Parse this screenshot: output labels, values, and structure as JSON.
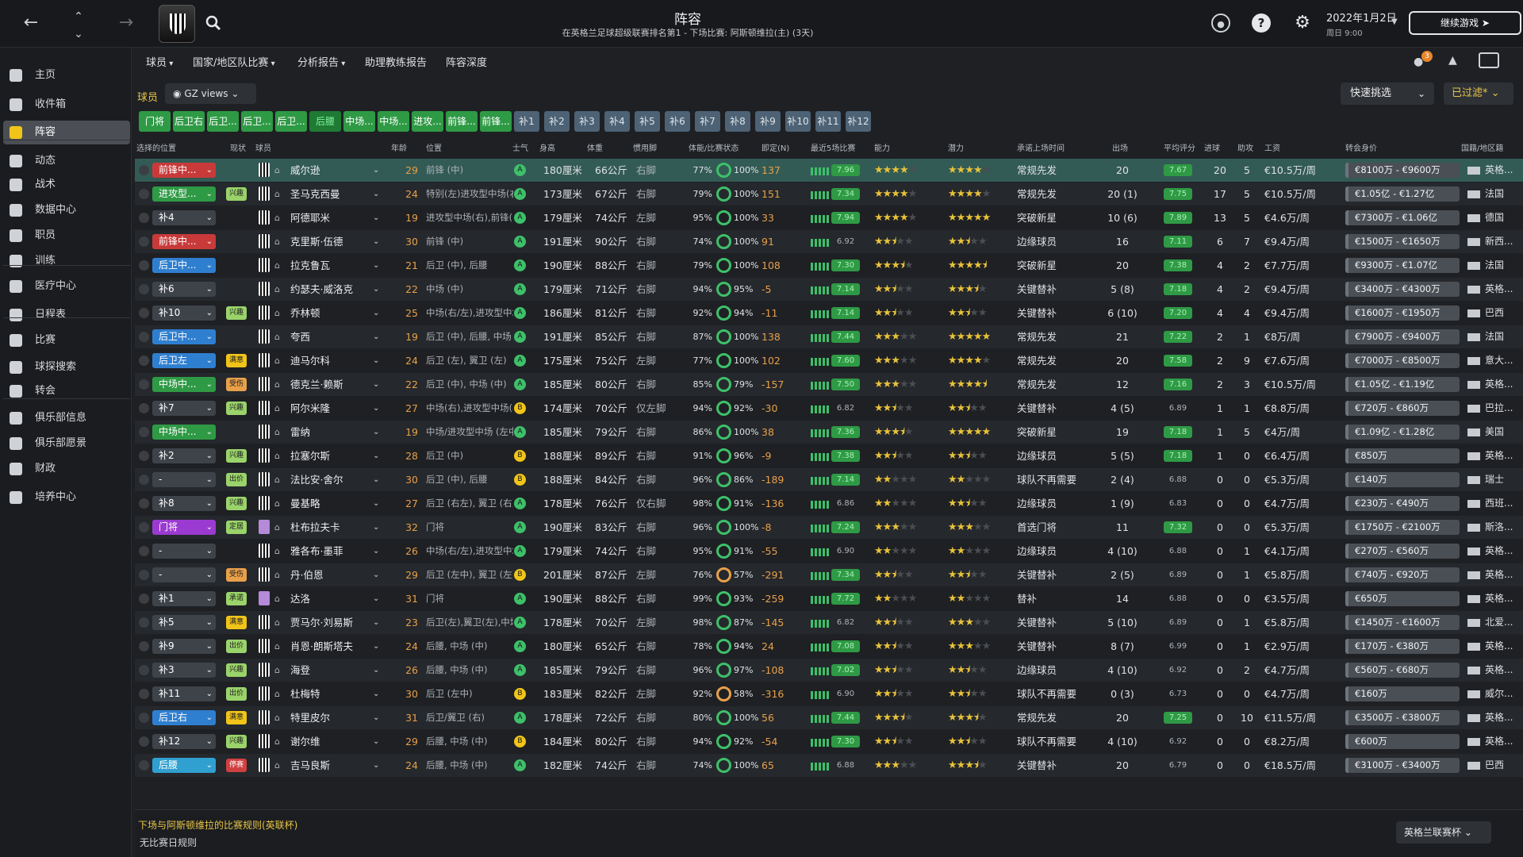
{
  "header": {
    "title": "阵容",
    "subtitle": "在英格兰足球超级联赛排名第1 - 下场比赛: 阿斯顿维拉(主) (3天)",
    "date": "2022年1月2日",
    "time": "周日 9:00",
    "continue_label": "继续游戏",
    "notif_count": "3"
  },
  "sidebar": {
    "items": [
      {
        "label": "主页",
        "icon": "home-icon"
      },
      {
        "label": "收件箱",
        "icon": "inbox-icon"
      },
      {
        "label": "阵容",
        "icon": "squad-icon"
      },
      {
        "label": "动态",
        "icon": "dynamics-icon"
      },
      {
        "label": "战术",
        "icon": "tactics-icon"
      },
      {
        "label": "数据中心",
        "icon": "data-hub-icon"
      },
      {
        "label": "职员",
        "icon": "staff-icon"
      },
      {
        "label": "训练",
        "icon": "training-icon"
      },
      {
        "label": "医疗中心",
        "icon": "medical-icon"
      },
      {
        "label": "日程表",
        "icon": "calendar-icon"
      },
      {
        "label": "比赛",
        "icon": "trophy-icon"
      },
      {
        "label": "球探搜索",
        "icon": "scouting-icon"
      },
      {
        "label": "转会",
        "icon": "transfer-icon"
      },
      {
        "label": "俱乐部信息",
        "icon": "club-info-icon"
      },
      {
        "label": "俱乐部愿景",
        "icon": "club-vision-icon"
      },
      {
        "label": "财政",
        "icon": "finance-icon"
      },
      {
        "label": "培养中心",
        "icon": "development-icon"
      }
    ]
  },
  "subtabs": [
    "球员",
    "国家/地区队比赛",
    "分析报告",
    "助理教练报告",
    "阵容深度"
  ],
  "filters": {
    "players_label": "球员",
    "view_label": "GZ views",
    "quick_pick": "快速挑选",
    "filtered": "已过滤*"
  },
  "position_tabs": [
    "门将",
    "后卫右",
    "后卫...",
    "后卫...",
    "后卫...",
    "后腰",
    "中场...",
    "中场...",
    "进攻...",
    "前锋...",
    "前锋...",
    "补1",
    "补2",
    "补3",
    "补4",
    "补5",
    "补6",
    "补7",
    "补8",
    "补9",
    "补10",
    "补11",
    "补12"
  ],
  "columns": [
    "选择的位置",
    "现状",
    "球员",
    "年龄",
    "位置",
    "士气",
    "身高",
    "体重",
    "惯用脚",
    "体能/比赛状态",
    "即定(N)",
    "最近5场比赛",
    "能力",
    "潜力",
    "承诺上场时间",
    "出场",
    "平均评分",
    "进球",
    "助攻",
    "工资",
    "转会身价",
    "国籍/地区籍"
  ],
  "players": [
    {
      "sel": "前锋中...",
      "selc": "#c83a3a",
      "st": "",
      "stc": "",
      "name": "威尔逊",
      "age": "29",
      "pos": "前锋 (中)",
      "mor": "A",
      "morc": "#3ec06a",
      "h": "180厘米",
      "w": "66公斤",
      "ft": "右脚",
      "c": "77%",
      "s": "100%",
      "fit": "137",
      "f5": "7.96",
      "ab": 4,
      "abh": 0,
      "pt": 4,
      "pth": 0,
      "role": "常规先发",
      "apps": "20",
      "avg": "7.67",
      "g": "20",
      "a": "5",
      "wage": "€10.5万/周",
      "val": "€8100万 - €9600万",
      "nat": "英格..."
    },
    {
      "sel": "进攻型...",
      "selc": "#2f9a45",
      "st": "兴趣",
      "stc": "#9ad36a",
      "name": "圣马克西曼",
      "age": "24",
      "pos": "特别(左)进攻型中场(右/左)",
      "mor": "A",
      "morc": "#3ec06a",
      "h": "173厘米",
      "w": "67公斤",
      "ft": "右脚",
      "c": "79%",
      "s": "100%",
      "fit": "151",
      "f5": "7.34",
      "ab": 4,
      "abh": 0,
      "pt": 4,
      "pth": 0,
      "role": "常规先发",
      "apps": "20 (1)",
      "avg": "7.75",
      "g": "17",
      "a": "5",
      "wage": "€10.5万/周",
      "val": "€1.05亿 - €1.27亿",
      "nat": "法国"
    },
    {
      "sel": "补4",
      "selc": "#3e434a",
      "st": "",
      "stc": "",
      "name": "阿德耶米",
      "age": "19",
      "pos": "进攻型中场(右),前锋(中)",
      "mor": "A",
      "morc": "#3ec06a",
      "h": "179厘米",
      "w": "74公斤",
      "ft": "左脚",
      "c": "95%",
      "s": "100%",
      "fit": "33",
      "f5": "7.94",
      "ab": 4,
      "abh": 0,
      "pt": 5,
      "pth": 0,
      "role": "突破新星",
      "apps": "10 (6)",
      "avg": "7.89",
      "g": "13",
      "a": "5",
      "wage": "€4.6万/周",
      "val": "€7300万 - €1.06亿",
      "nat": "德国"
    },
    {
      "sel": "前锋中...",
      "selc": "#c83a3a",
      "st": "",
      "stc": "",
      "name": "克里斯·伍德",
      "age": "30",
      "pos": "前锋 (中)",
      "mor": "A",
      "morc": "#3ec06a",
      "h": "191厘米",
      "w": "90公斤",
      "ft": "右脚",
      "c": "74%",
      "s": "100%",
      "fit": "91",
      "f5": "6.92",
      "ab": 2,
      "abh": 1,
      "pt": 2,
      "pth": 1,
      "role": "边缘球员",
      "apps": "16",
      "avg": "7.11",
      "g": "6",
      "a": "7",
      "wage": "€9.4万/周",
      "val": "€1500万 - €1650万",
      "nat": "新西..."
    },
    {
      "sel": "后卫中...",
      "selc": "#2f7fd0",
      "st": "",
      "stc": "",
      "name": "拉克鲁瓦",
      "age": "21",
      "pos": "后卫 (中), 后腰",
      "mor": "A",
      "morc": "#3ec06a",
      "h": "190厘米",
      "w": "88公斤",
      "ft": "右脚",
      "c": "79%",
      "s": "100%",
      "fit": "108",
      "f5": "7.30",
      "ab": 3,
      "abh": 1,
      "pt": 4,
      "pth": 1,
      "role": "突破新星",
      "apps": "20",
      "avg": "7.38",
      "g": "4",
      "a": "2",
      "wage": "€7.7万/周",
      "val": "€9300万 - €1.07亿",
      "nat": "法国"
    },
    {
      "sel": "补6",
      "selc": "#3e434a",
      "st": "",
      "stc": "",
      "name": "约瑟夫·威洛克",
      "age": "22",
      "pos": "中场 (中)",
      "mor": "A",
      "morc": "#3ec06a",
      "h": "179厘米",
      "w": "71公斤",
      "ft": "右脚",
      "c": "94%",
      "s": "95%",
      "fit": "-5",
      "f5": "7.14",
      "ab": 2,
      "abh": 1,
      "pt": 3,
      "pth": 1,
      "role": "关键替补",
      "apps": "5 (8)",
      "avg": "7.18",
      "g": "4",
      "a": "2",
      "wage": "€9.4万/周",
      "val": "€3400万 - €4300万",
      "nat": "英格..."
    },
    {
      "sel": "补10",
      "selc": "#3e434a",
      "st": "兴趣",
      "stc": "#9ad36a",
      "name": "乔林顿",
      "age": "25",
      "pos": "中场(右/左),进攻型中场(右/左)",
      "mor": "A",
      "morc": "#3ec06a",
      "h": "186厘米",
      "w": "81公斤",
      "ft": "右脚",
      "c": "92%",
      "s": "94%",
      "fit": "-11",
      "f5": "7.14",
      "ab": 2,
      "abh": 1,
      "pt": 2,
      "pth": 1,
      "role": "关键替补",
      "apps": "6 (10)",
      "avg": "7.20",
      "g": "4",
      "a": "4",
      "wage": "€9.4万/周",
      "val": "€1600万 - €1950万",
      "nat": "巴西"
    },
    {
      "sel": "后卫中...",
      "selc": "#2f7fd0",
      "st": "",
      "stc": "",
      "name": "夸西",
      "age": "19",
      "pos": "后卫 (中), 后腰, 中场 (中)",
      "mor": "A",
      "morc": "#3ec06a",
      "h": "191厘米",
      "w": "85公斤",
      "ft": "右脚",
      "c": "87%",
      "s": "100%",
      "fit": "138",
      "f5": "7.44",
      "ab": 3,
      "abh": 0,
      "pt": 5,
      "pth": 0,
      "role": "常规先发",
      "apps": "21",
      "avg": "7.22",
      "g": "2",
      "a": "1",
      "wage": "€8万/周",
      "val": "€7900万 - €9400万",
      "nat": "法国"
    },
    {
      "sel": "后卫左",
      "selc": "#2f7fd0",
      "st": "满意",
      "stc": "#f0c419",
      "name": "迪马尔科",
      "age": "24",
      "pos": "后卫 (左), 翼卫 (左)",
      "mor": "A",
      "morc": "#3ec06a",
      "h": "175厘米",
      "w": "75公斤",
      "ft": "左脚",
      "c": "77%",
      "s": "100%",
      "fit": "102",
      "f5": "7.60",
      "ab": 3,
      "abh": 0,
      "pt": 4,
      "pth": 0,
      "role": "常规先发",
      "apps": "20",
      "avg": "7.58",
      "g": "2",
      "a": "9",
      "wage": "€7.6万/周",
      "val": "€7000万 - €8500万",
      "nat": "意大..."
    },
    {
      "sel": "中场中...",
      "selc": "#2f9a45",
      "st": "受伤",
      "stc": "#e8a04a",
      "name": "德克兰·赖斯",
      "age": "22",
      "pos": "后卫 (中), 中场 (中)",
      "mor": "A",
      "morc": "#3ec06a",
      "h": "185厘米",
      "w": "80公斤",
      "ft": "右脚",
      "c": "85%",
      "s": "79%",
      "fit": "-157",
      "f5": "7.50",
      "ab": 3,
      "abh": 0,
      "pt": 4,
      "pth": 1,
      "role": "常规先发",
      "apps": "12",
      "avg": "7.16",
      "g": "2",
      "a": "3",
      "wage": "€10.5万/周",
      "val": "€1.05亿 - €1.19亿",
      "nat": "英格..."
    },
    {
      "sel": "补7",
      "selc": "#3e434a",
      "st": "兴趣",
      "stc": "#9ad36a",
      "name": "阿尔米隆",
      "age": "27",
      "pos": "中场(右),进攻型中场(右)",
      "mor": "B",
      "morc": "#f0c419",
      "h": "174厘米",
      "w": "70公斤",
      "ft": "仅左脚",
      "c": "94%",
      "s": "92%",
      "fit": "-30",
      "f5": "6.82",
      "ab": 2,
      "abh": 1,
      "pt": 2,
      "pth": 1,
      "role": "关键替补",
      "apps": "4 (5)",
      "avg": "6.89",
      "g": "1",
      "a": "1",
      "wage": "€8.8万/周",
      "val": "€720万 - €860万",
      "nat": "巴拉..."
    },
    {
      "sel": "中场中...",
      "selc": "#2f9a45",
      "st": "",
      "stc": "",
      "name": "雷纳",
      "age": "19",
      "pos": "中场/进攻型中场 (左中)",
      "mor": "A",
      "morc": "#3ec06a",
      "h": "185厘米",
      "w": "79公斤",
      "ft": "右脚",
      "c": "86%",
      "s": "100%",
      "fit": "38",
      "f5": "7.36",
      "ab": 3,
      "abh": 1,
      "pt": 5,
      "pth": 0,
      "role": "突破新星",
      "apps": "19",
      "avg": "7.18",
      "g": "1",
      "a": "5",
      "wage": "€4万/周",
      "val": "€1.09亿 - €1.28亿",
      "nat": "美国"
    },
    {
      "sel": "补2",
      "selc": "#3e434a",
      "st": "兴趣",
      "stc": "#9ad36a",
      "name": "拉塞尔斯",
      "age": "28",
      "pos": "后卫 (中)",
      "mor": "B",
      "morc": "#f0c419",
      "h": "188厘米",
      "w": "89公斤",
      "ft": "右脚",
      "c": "91%",
      "s": "96%",
      "fit": "-9",
      "f5": "7.38",
      "ab": 2,
      "abh": 1,
      "pt": 2,
      "pth": 1,
      "role": "边缘球员",
      "apps": "5 (5)",
      "avg": "7.18",
      "g": "1",
      "a": "0",
      "wage": "€6.4万/周",
      "val": "€850万",
      "nat": "英格..."
    },
    {
      "sel": "-",
      "selc": "#3e434a",
      "st": "出价",
      "stc": "#9ad36a",
      "name": "法比安·舍尔",
      "age": "30",
      "pos": "后卫 (中), 后腰",
      "mor": "B",
      "morc": "#f0c419",
      "h": "188厘米",
      "w": "84公斤",
      "ft": "右脚",
      "c": "96%",
      "s": "86%",
      "fit": "-189",
      "f5": "7.14",
      "ab": 2,
      "abh": 0,
      "pt": 2,
      "pth": 0,
      "role": "球队不再需要",
      "apps": "2 (4)",
      "avg": "6.88",
      "g": "0",
      "a": "0",
      "wage": "€5.3万/周",
      "val": "€140万",
      "nat": "瑞士"
    },
    {
      "sel": "补8",
      "selc": "#3e434a",
      "st": "兴趣",
      "stc": "#9ad36a",
      "name": "曼基略",
      "age": "27",
      "pos": "后卫 (右左), 翼卫 (右)",
      "mor": "A",
      "morc": "#3ec06a",
      "h": "178厘米",
      "w": "76公斤",
      "ft": "仅右脚",
      "c": "98%",
      "s": "91%",
      "fit": "-136",
      "f5": "6.86",
      "ab": 2,
      "abh": 0,
      "pt": 2,
      "pth": 1,
      "role": "边缘球员",
      "apps": "1 (9)",
      "avg": "6.83",
      "g": "0",
      "a": "0",
      "wage": "€4.7万/周",
      "val": "€230万 - €490万",
      "nat": "西班..."
    },
    {
      "sel": "门将",
      "selc": "#9a3ad0",
      "st": "定居",
      "stc": "#9ad36a",
      "name": "杜布拉夫卡",
      "age": "32",
      "pos": "门将",
      "mor": "A",
      "morc": "#3ec06a",
      "h": "190厘米",
      "w": "83公斤",
      "ft": "右脚",
      "c": "96%",
      "s": "100%",
      "fit": "-8",
      "f5": "7.24",
      "ab": 3,
      "abh": 0,
      "pt": 3,
      "pth": 0,
      "role": "首选门将",
      "apps": "11",
      "avg": "7.32",
      "g": "0",
      "a": "0",
      "wage": "€5.3万/周",
      "val": "€1750万 - €2100万",
      "nat": "斯洛..."
    },
    {
      "sel": "-",
      "selc": "#3e434a",
      "st": "",
      "stc": "",
      "name": "雅各布·墨菲",
      "age": "26",
      "pos": "中场(右/左),进攻型中场(右/左)",
      "mor": "A",
      "morc": "#3ec06a",
      "h": "179厘米",
      "w": "74公斤",
      "ft": "右脚",
      "c": "95%",
      "s": "91%",
      "fit": "-55",
      "f5": "6.90",
      "ab": 2,
      "abh": 0,
      "pt": 2,
      "pth": 0,
      "role": "边缘球员",
      "apps": "4 (10)",
      "avg": "6.88",
      "g": "0",
      "a": "1",
      "wage": "€4.1万/周",
      "val": "€270万 - €560万",
      "nat": "英格..."
    },
    {
      "sel": "-",
      "selc": "#3e434a",
      "st": "受伤",
      "stc": "#e8a04a",
      "name": "丹·伯恩",
      "age": "29",
      "pos": "后卫 (左中), 翼卫 (左)",
      "mor": "B",
      "morc": "#f0c419",
      "h": "201厘米",
      "w": "87公斤",
      "ft": "左脚",
      "c": "76%",
      "s": "57%",
      "fit": "-291",
      "f5": "7.34",
      "ab": 2,
      "abh": 1,
      "pt": 2,
      "pth": 1,
      "role": "关键替补",
      "apps": "2 (5)",
      "avg": "6.89",
      "g": "0",
      "a": "1",
      "wage": "€5.8万/周",
      "val": "€740万 - €920万",
      "nat": "英格..."
    },
    {
      "sel": "补1",
      "selc": "#3e434a",
      "st": "承诺",
      "stc": "#9ad36a",
      "name": "达洛",
      "age": "31",
      "pos": "门将",
      "mor": "A",
      "morc": "#3ec06a",
      "h": "190厘米",
      "w": "88公斤",
      "ft": "右脚",
      "c": "99%",
      "s": "93%",
      "fit": "-259",
      "f5": "7.72",
      "ab": 2,
      "abh": 0,
      "pt": 2,
      "pth": 0,
      "role": "替补",
      "apps": "14",
      "avg": "6.88",
      "g": "0",
      "a": "0",
      "wage": "€3.5万/周",
      "val": "€650万",
      "nat": "英格..."
    },
    {
      "sel": "补5",
      "selc": "#3e434a",
      "st": "满意",
      "stc": "#f0c419",
      "name": "贾马尔·刘易斯",
      "age": "23",
      "pos": "后卫(左),翼卫(左),中场(左)",
      "mor": "A",
      "morc": "#3ec06a",
      "h": "178厘米",
      "w": "70公斤",
      "ft": "左脚",
      "c": "98%",
      "s": "87%",
      "fit": "-145",
      "f5": "6.82",
      "ab": 2,
      "abh": 1,
      "pt": 3,
      "pth": 0,
      "role": "关键替补",
      "apps": "5 (10)",
      "avg": "6.89",
      "g": "0",
      "a": "1",
      "wage": "€5.8万/周",
      "val": "€1450万 - €1600万",
      "nat": "北爱..."
    },
    {
      "sel": "补9",
      "selc": "#3e434a",
      "st": "出价",
      "stc": "#9ad36a",
      "name": "肖恩·朗斯塔夫",
      "age": "24",
      "pos": "后腰, 中场 (中)",
      "mor": "A",
      "morc": "#3ec06a",
      "h": "180厘米",
      "w": "65公斤",
      "ft": "右脚",
      "c": "78%",
      "s": "94%",
      "fit": "24",
      "f5": "7.08",
      "ab": 2,
      "abh": 1,
      "pt": 3,
      "pth": 0,
      "role": "关键替补",
      "apps": "8 (7)",
      "avg": "6.99",
      "g": "0",
      "a": "1",
      "wage": "€2.9万/周",
      "val": "€170万 - €380万",
      "nat": "英格..."
    },
    {
      "sel": "补3",
      "selc": "#3e434a",
      "st": "兴趣",
      "stc": "#9ad36a",
      "name": "海登",
      "age": "26",
      "pos": "后腰, 中场 (中)",
      "mor": "A",
      "morc": "#3ec06a",
      "h": "185厘米",
      "w": "79公斤",
      "ft": "右脚",
      "c": "96%",
      "s": "97%",
      "fit": "-108",
      "f5": "7.02",
      "ab": 2,
      "abh": 1,
      "pt": 2,
      "pth": 1,
      "role": "边缘球员",
      "apps": "4 (10)",
      "avg": "6.92",
      "g": "0",
      "a": "2",
      "wage": "€4.7万/周",
      "val": "€560万 - €680万",
      "nat": "英格..."
    },
    {
      "sel": "补11",
      "selc": "#3e434a",
      "st": "出价",
      "stc": "#9ad36a",
      "name": "杜梅特",
      "age": "30",
      "pos": "后卫 (左中)",
      "mor": "B",
      "morc": "#f0c419",
      "h": "183厘米",
      "w": "82公斤",
      "ft": "左脚",
      "c": "92%",
      "s": "58%",
      "fit": "-316",
      "f5": "6.90",
      "ab": 2,
      "abh": 1,
      "pt": 2,
      "pth": 1,
      "role": "球队不再需要",
      "apps": "0 (3)",
      "avg": "6.73",
      "g": "0",
      "a": "0",
      "wage": "€4.7万/周",
      "val": "€160万",
      "nat": "威尔..."
    },
    {
      "sel": "后卫右",
      "selc": "#2f7fd0",
      "st": "满意",
      "stc": "#f0c419",
      "name": "特里皮尔",
      "age": "31",
      "pos": "后卫/翼卫 (右)",
      "mor": "A",
      "morc": "#3ec06a",
      "h": "178厘米",
      "w": "72公斤",
      "ft": "右脚",
      "c": "80%",
      "s": "100%",
      "fit": "56",
      "f5": "7.44",
      "ab": 3,
      "abh": 1,
      "pt": 3,
      "pth": 1,
      "role": "常规先发",
      "apps": "20",
      "avg": "7.25",
      "g": "0",
      "a": "10",
      "wage": "€11.5万/周",
      "val": "€3500万 - €3800万",
      "nat": "英格..."
    },
    {
      "sel": "补12",
      "selc": "#3e434a",
      "st": "兴趣",
      "stc": "#9ad36a",
      "name": "谢尔维",
      "age": "29",
      "pos": "后腰, 中场 (中)",
      "mor": "B",
      "morc": "#f0c419",
      "h": "184厘米",
      "w": "80公斤",
      "ft": "右脚",
      "c": "94%",
      "s": "92%",
      "fit": "-54",
      "f5": "7.30",
      "ab": 2,
      "abh": 1,
      "pt": 2,
      "pth": 1,
      "role": "球队不再需要",
      "apps": "4 (10)",
      "avg": "6.92",
      "g": "0",
      "a": "0",
      "wage": "€8.2万/周",
      "val": "€600万",
      "nat": "英格..."
    },
    {
      "sel": "后腰",
      "selc": "#2fa0d0",
      "st": "停赛",
      "stc": "#d04040",
      "name": "吉马良斯",
      "age": "24",
      "pos": "后腰, 中场 (中)",
      "mor": "A",
      "morc": "#3ec06a",
      "h": "182厘米",
      "w": "74公斤",
      "ft": "右脚",
      "c": "74%",
      "s": "100%",
      "fit": "65",
      "f5": "6.88",
      "ab": 3,
      "abh": 0,
      "pt": 3,
      "pth": 1,
      "role": "关键替补",
      "apps": "20",
      "avg": "6.79",
      "g": "0",
      "a": "0",
      "wage": "€18.5万/周",
      "val": "€3100万 - €3400万",
      "nat": "巴西"
    }
  ],
  "footer": {
    "rules_title": "下场与阿斯顿维拉的比赛规则(英联杯)",
    "rules_text": "无比赛日规则",
    "league_select": "英格兰联赛杯"
  }
}
